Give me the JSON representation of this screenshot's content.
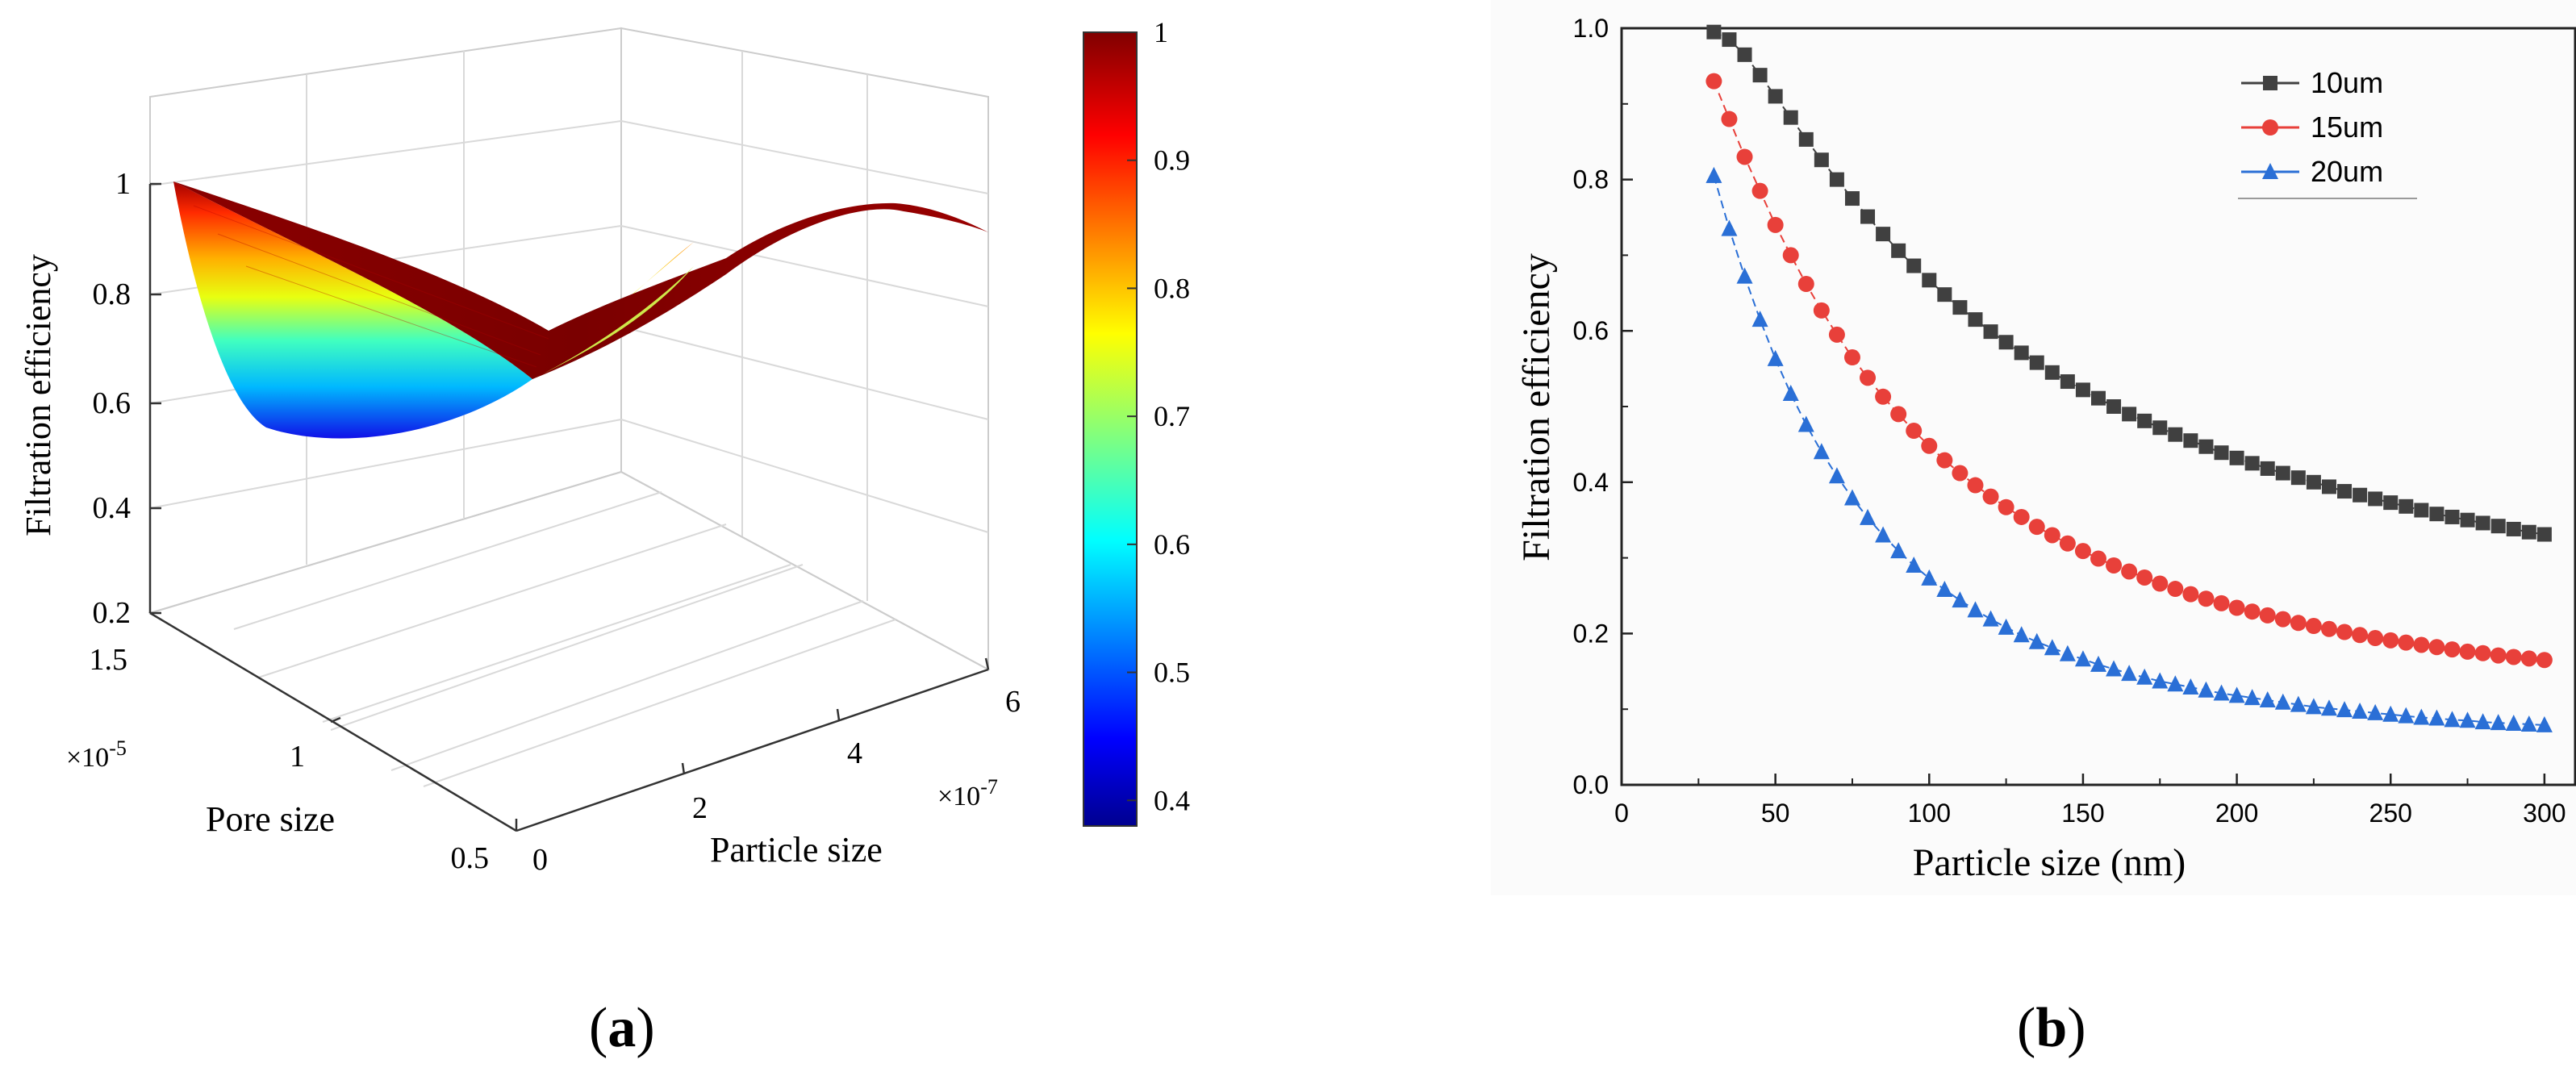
{
  "panel_labels": {
    "a_open": "(",
    "a_letter": "a",
    "a_close": ")",
    "b_open": "(",
    "b_letter": "b",
    "b_close": ")"
  },
  "chart_data": [
    {
      "panel": "a",
      "type": "surface3d",
      "zlabel": "Filtration efficiency",
      "xlabel": "Particle size",
      "ylabel": "Pore size",
      "x_ticks": [
        "0",
        "2",
        "4",
        "6"
      ],
      "x_exponent": "×10",
      "x_exponent_power": "-7",
      "y_ticks": [
        "0.5",
        "1",
        "1.5"
      ],
      "y_exponent": "×10",
      "y_exponent_power": "-5",
      "z_ticks": [
        "0.2",
        "0.4",
        "0.6",
        "0.8",
        "1"
      ],
      "colorbar_ticks": [
        "0.4",
        "0.5",
        "0.6",
        "0.7",
        "0.8",
        "0.9",
        "1"
      ],
      "colormap": "jet",
      "colorbar_range": [
        0.38,
        1.0
      ],
      "xlim": [
        0,
        6e-07
      ],
      "ylim": [
        5e-06,
        1.5e-05
      ],
      "zlim": [
        0.2,
        1.0
      ],
      "surface_edges": {
        "pore_min_edge": {
          "particle": [
            0,
            1e-07,
            2e-07,
            3e-07,
            4e-07,
            5e-07,
            6e-07
          ],
          "efficiency": [
            1.0,
            0.72,
            0.6,
            0.62,
            0.72,
            0.88,
            0.98
          ]
        },
        "pore_max_edge": {
          "particle": [
            0,
            2e-07,
            4e-07,
            6e-07
          ],
          "efficiency": [
            0.98,
            0.96,
            0.97,
            0.99
          ]
        }
      }
    },
    {
      "panel": "b",
      "type": "line",
      "xlabel": "Particle size (nm)",
      "ylabel": "Filtration efficiency",
      "xlim": [
        0,
        310
      ],
      "ylim": [
        0.0,
        1.0
      ],
      "x_ticks": [
        "0",
        "50",
        "100",
        "150",
        "200",
        "250",
        "300"
      ],
      "y_ticks": [
        "0.0",
        "0.2",
        "0.4",
        "0.6",
        "0.8",
        "1.0"
      ],
      "legend_position": "top-right",
      "x": [
        30,
        35,
        40,
        45,
        50,
        55,
        60,
        65,
        70,
        75,
        80,
        85,
        90,
        95,
        100,
        105,
        110,
        115,
        120,
        125,
        130,
        135,
        140,
        145,
        150,
        155,
        160,
        165,
        170,
        175,
        180,
        185,
        190,
        195,
        200,
        205,
        210,
        215,
        220,
        225,
        230,
        235,
        240,
        245,
        250,
        255,
        260,
        265,
        270,
        275,
        280,
        285,
        290,
        295,
        300
      ],
      "series": [
        {
          "name": "10um",
          "color": "#404040",
          "marker": "square",
          "values": [
            0.995,
            0.985,
            0.965,
            0.938,
            0.91,
            0.882,
            0.853,
            0.826,
            0.8,
            0.775,
            0.751,
            0.728,
            0.706,
            0.686,
            0.667,
            0.648,
            0.631,
            0.615,
            0.599,
            0.585,
            0.571,
            0.558,
            0.545,
            0.533,
            0.522,
            0.511,
            0.5,
            0.49,
            0.481,
            0.472,
            0.463,
            0.455,
            0.447,
            0.439,
            0.432,
            0.425,
            0.418,
            0.412,
            0.406,
            0.4,
            0.394,
            0.388,
            0.383,
            0.378,
            0.373,
            0.368,
            0.363,
            0.358,
            0.354,
            0.35,
            0.346,
            0.342,
            0.338,
            0.334,
            0.331
          ]
        },
        {
          "name": "15um",
          "color": "#e8403a",
          "marker": "circle",
          "values": [
            0.93,
            0.88,
            0.83,
            0.785,
            0.74,
            0.7,
            0.662,
            0.627,
            0.595,
            0.565,
            0.538,
            0.513,
            0.49,
            0.468,
            0.448,
            0.429,
            0.412,
            0.396,
            0.381,
            0.367,
            0.354,
            0.341,
            0.33,
            0.319,
            0.309,
            0.299,
            0.29,
            0.282,
            0.274,
            0.266,
            0.259,
            0.252,
            0.246,
            0.24,
            0.234,
            0.229,
            0.224,
            0.219,
            0.214,
            0.21,
            0.206,
            0.202,
            0.198,
            0.194,
            0.191,
            0.188,
            0.185,
            0.182,
            0.179,
            0.176,
            0.174,
            0.171,
            0.169,
            0.167,
            0.165
          ]
        },
        {
          "name": "20um",
          "color": "#2a6fd6",
          "marker": "triangle",
          "values": [
            0.805,
            0.735,
            0.672,
            0.615,
            0.563,
            0.517,
            0.476,
            0.44,
            0.408,
            0.379,
            0.353,
            0.33,
            0.309,
            0.29,
            0.273,
            0.258,
            0.244,
            0.231,
            0.219,
            0.208,
            0.198,
            0.189,
            0.181,
            0.173,
            0.166,
            0.159,
            0.153,
            0.147,
            0.142,
            0.137,
            0.133,
            0.129,
            0.125,
            0.121,
            0.118,
            0.115,
            0.112,
            0.109,
            0.106,
            0.103,
            0.101,
            0.099,
            0.097,
            0.095,
            0.093,
            0.091,
            0.089,
            0.088,
            0.086,
            0.085,
            0.083,
            0.082,
            0.081,
            0.08,
            0.079
          ]
        }
      ]
    }
  ]
}
